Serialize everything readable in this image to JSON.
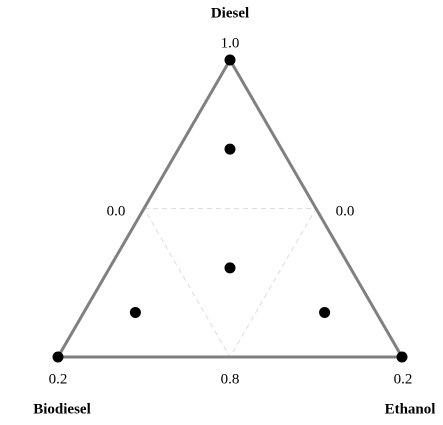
{
  "chart_data": {
    "type": "ternary",
    "corner_labels": [
      "Diesel",
      "Biodiesel",
      "Ethanol"
    ],
    "annotations": [
      "1.0",
      "0.0",
      "0.0",
      "0.2",
      "0.8",
      "0.2"
    ],
    "color": "#000000",
    "frame_color": "#808080",
    "grid": true,
    "series": [
      {
        "name": "Diesel",
        "values": [
          1,
          0.7,
          0.3,
          0.15,
          0.15,
          0,
          0
        ]
      },
      {
        "name": "Biodiesel",
        "values": [
          0,
          0.15,
          0.35,
          0.7,
          0.15,
          1,
          0
        ]
      },
      {
        "name": "Ethanol",
        "values": [
          0,
          0.15,
          0.35,
          0.15,
          0.7,
          0,
          1
        ]
      }
    ]
  }
}
